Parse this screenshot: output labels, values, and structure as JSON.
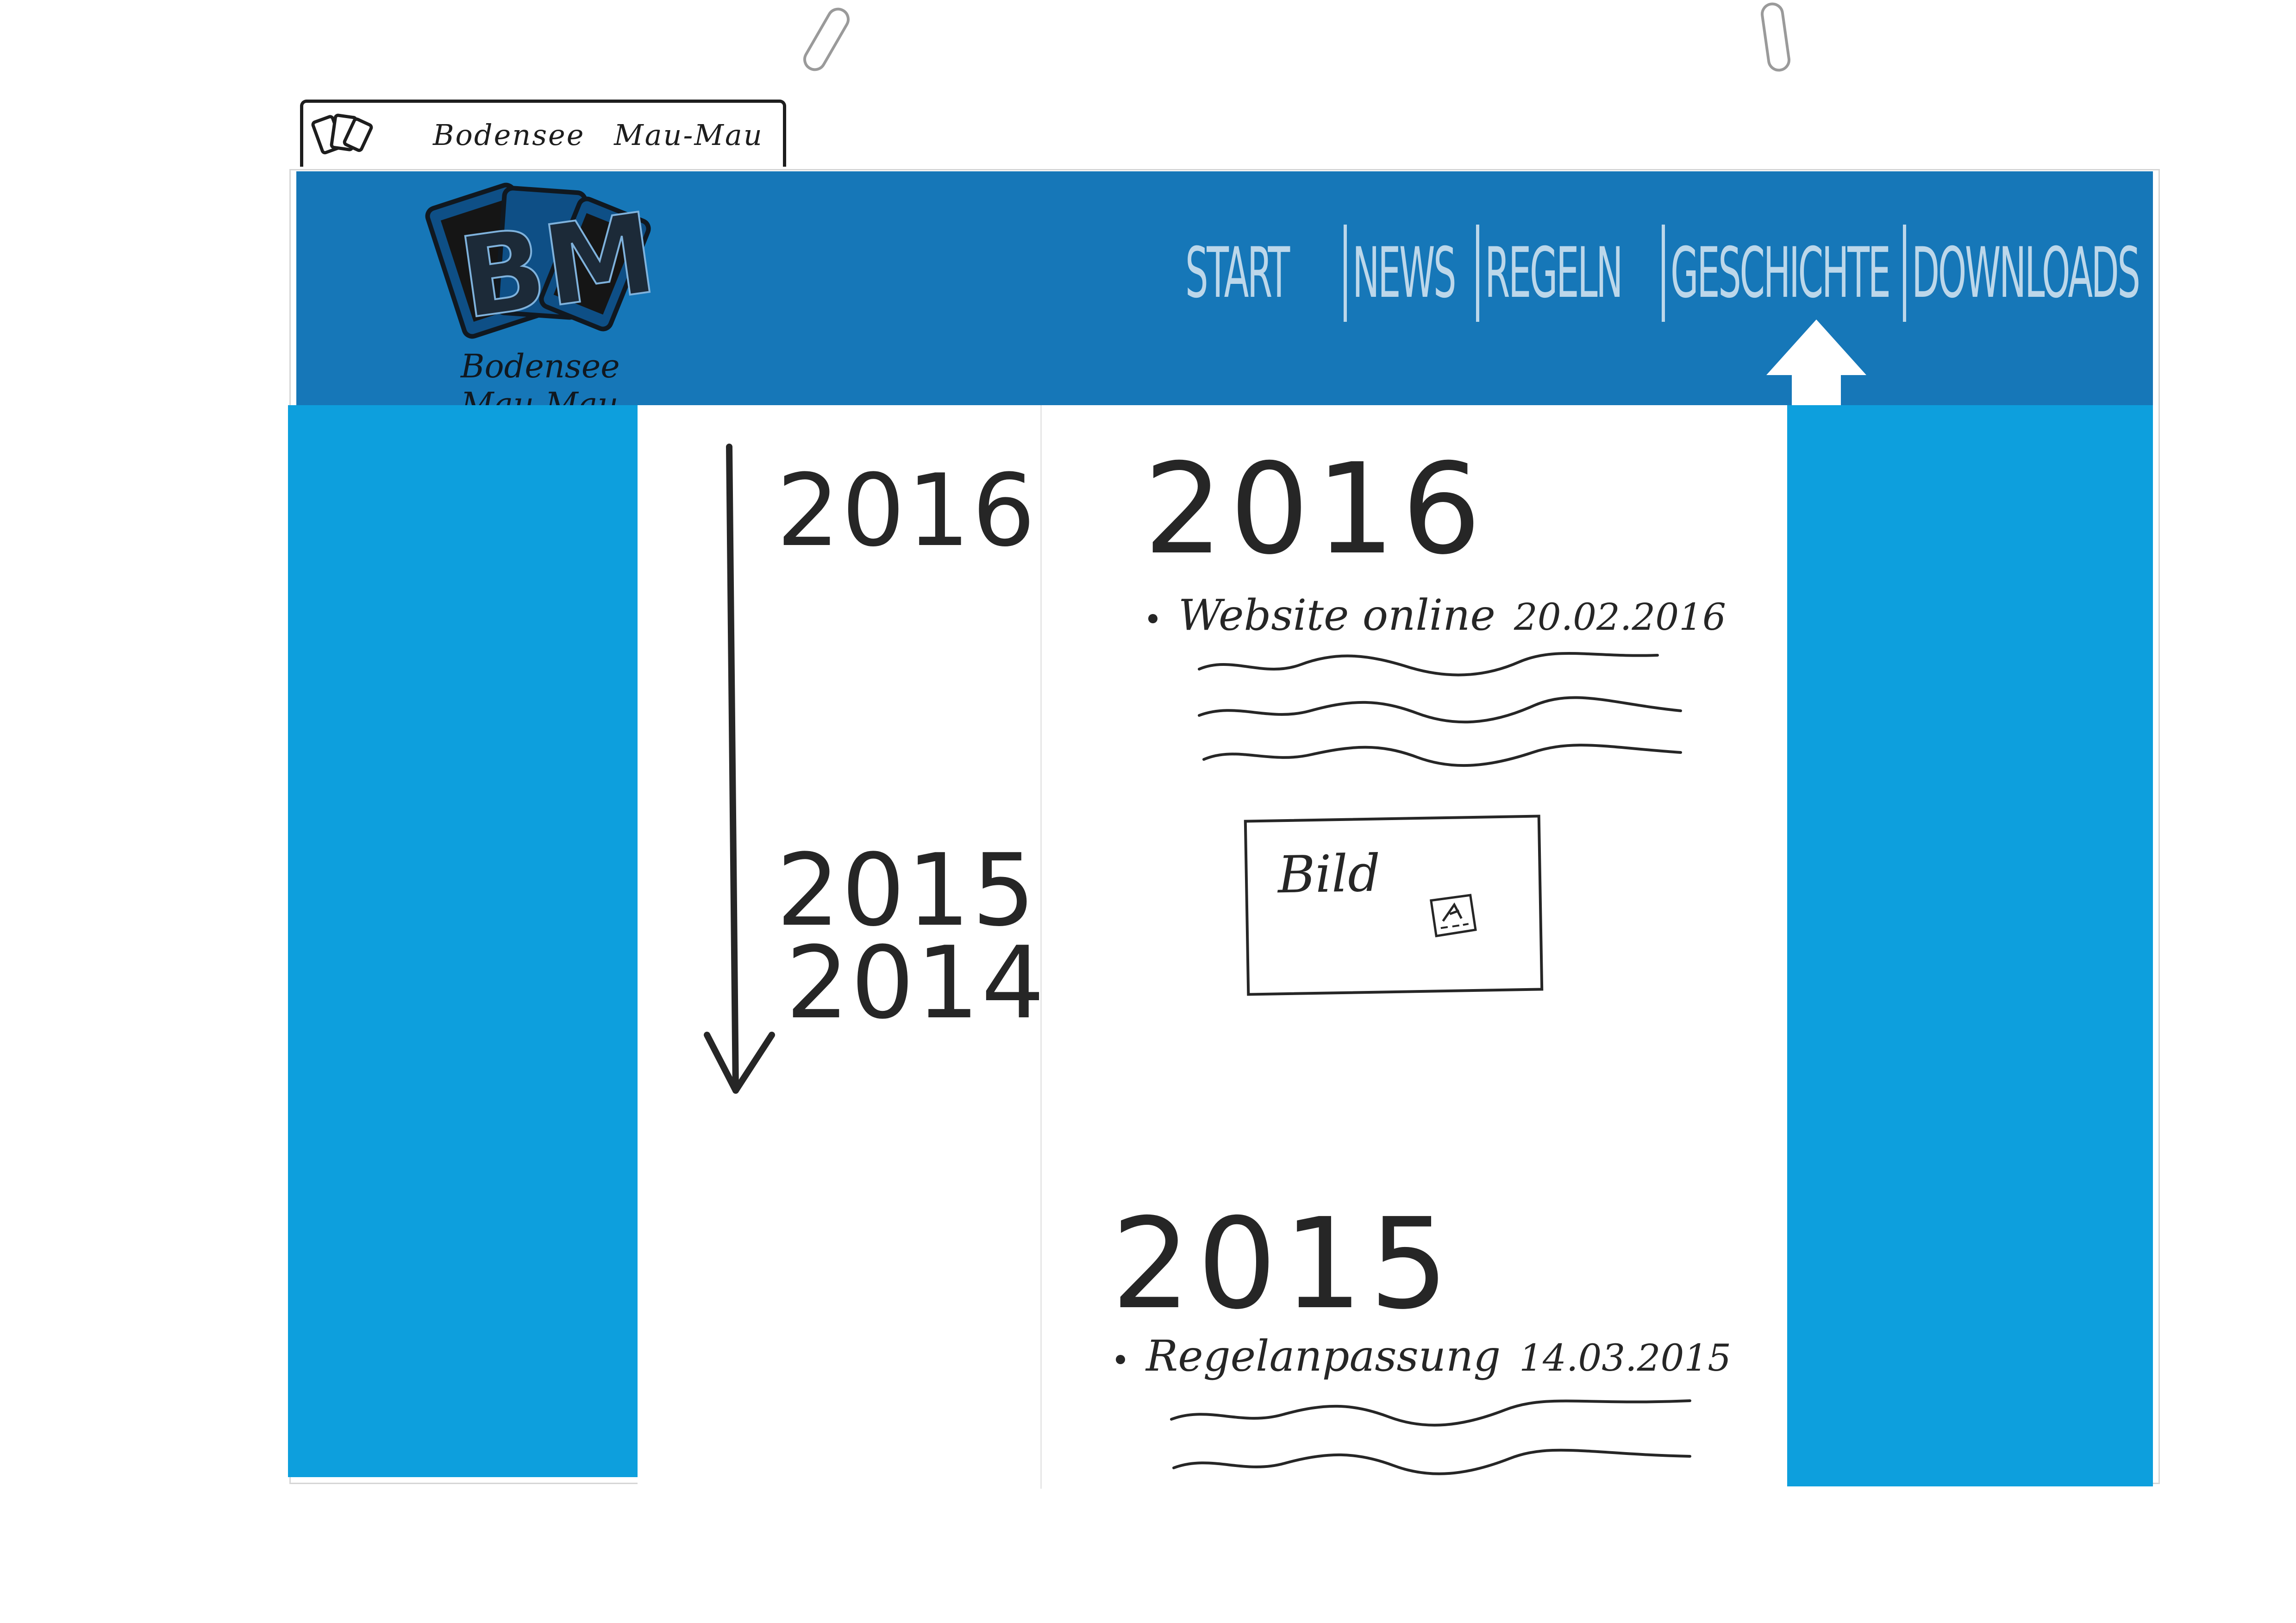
{
  "browser": {
    "tab_title": "Bodensee Mau-Mau",
    "favicon_icon": "playing-cards-icon"
  },
  "header": {
    "background": "#1677b8",
    "logo": {
      "letters": "BM",
      "subtitle": "Bodensee Mau-Mau"
    },
    "nav": {
      "items": [
        {
          "label": "START"
        },
        {
          "label": "NEWS"
        },
        {
          "label": "REGELN"
        },
        {
          "label": "GESCHICHTE",
          "active": true
        },
        {
          "label": "DOWNLOADS"
        }
      ],
      "text_color": "#bcd7ea",
      "active_marker_icon": "up-arrow-icon"
    }
  },
  "side_color": "#0d9fdd",
  "timeline": {
    "arrow_icon": "down-arrow-icon",
    "years": [
      "2016",
      "2015",
      "2014"
    ]
  },
  "history": {
    "sections": [
      {
        "year": "2016",
        "entries": [
          {
            "title": "Website online",
            "date": "20.02.2016"
          }
        ],
        "image_placeholder": {
          "label": "Bild",
          "icon": "image-icon"
        }
      },
      {
        "year": "2015",
        "entries": [
          {
            "title": "Regelanpassung",
            "date": "14.03.2015"
          }
        ]
      }
    ]
  }
}
